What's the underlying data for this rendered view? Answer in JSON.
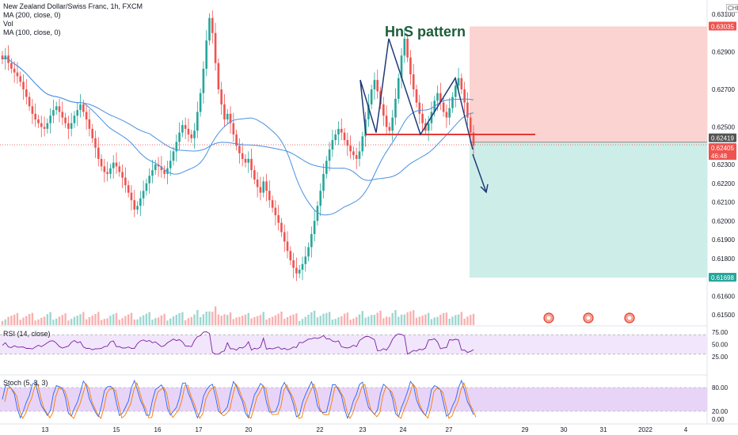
{
  "legend": {
    "symbol": "New Zealand Dollar/Swiss Franc, 1h, FXCM",
    "ma200": "MA (200, close, 0)",
    "vol": "Vol",
    "ma100": "MA (100, close, 0)"
  },
  "annotation": {
    "title": "HnS pattern"
  },
  "currency_label": "CHF",
  "rsi_label": "RSI (14, close)",
  "stoch_label": "Stoch (5, 3, 3)",
  "colors": {
    "up": "#26a69a",
    "down": "#ef5350",
    "ma": "#4a90e2",
    "pattern": "#1e3a78",
    "neckline": "#e53935",
    "stop_zone": "#fbd3d1",
    "target_zone": "#cdeee8",
    "rsi": "#7b1fa2",
    "rsi_band": "#f1e6fb",
    "stoch_k": "#2962ff",
    "stoch_d": "#f57c00",
    "stoch_band": "#e8d4f7"
  },
  "chart_data": {
    "type": "candlestick",
    "price_axis": {
      "ticks": [
        "0.63100",
        "0.62900",
        "0.62700",
        "0.62500",
        "0.62300",
        "0.62200",
        "0.62100",
        "0.62000",
        "0.61900",
        "0.61800",
        "0.61600",
        "0.61500"
      ],
      "ylim": [
        0.615,
        0.6315
      ]
    },
    "x_ticks": [
      "13",
      "15",
      "16",
      "17",
      "20",
      "22",
      "23",
      "24",
      "27",
      "29",
      "30",
      "31",
      "2022",
      "4"
    ],
    "price_tags": [
      {
        "value": "0.63035",
        "color": "#ef5350"
      },
      {
        "value": "0.62419",
        "color": "#555555"
      },
      {
        "value": "0.62405",
        "color": "#ef5350"
      },
      {
        "value": "46:48",
        "color": "#ef5350"
      },
      {
        "value": "0.61698",
        "color": "#26a69a"
      }
    ],
    "key_levels": {
      "stop_loss": 0.63035,
      "entry": 0.62419,
      "current": 0.62405,
      "take_profit": 0.61698,
      "neckline": 0.6246
    },
    "pattern_path": [
      [
        0.6246,
        0.6275
      ],
      [
        0.6275,
        0.6247
      ],
      [
        0.6247,
        0.6297
      ],
      [
        0.6297,
        0.6246
      ],
      [
        0.6246,
        0.6276
      ],
      [
        0.6276,
        0.6238
      ]
    ],
    "rsi_axis": [
      "75.00",
      "50.00",
      "25.00"
    ],
    "rsi_band": [
      30,
      70
    ],
    "stoch_axis": [
      "80.00",
      "20.00",
      "0.00"
    ],
    "stoch_band": [
      20,
      80
    ],
    "closes": [
      0.6286,
      0.6288,
      0.6284,
      0.6281,
      0.6279,
      0.6277,
      0.6274,
      0.627,
      0.6266,
      0.6261,
      0.6257,
      0.6254,
      0.6252,
      0.625,
      0.6249,
      0.6252,
      0.6256,
      0.6259,
      0.6261,
      0.6258,
      0.6255,
      0.6252,
      0.6249,
      0.6252,
      0.6256,
      0.6259,
      0.6262,
      0.6258,
      0.6254,
      0.6249,
      0.6244,
      0.6239,
      0.6233,
      0.6229,
      0.6226,
      0.6225,
      0.6228,
      0.6231,
      0.6229,
      0.6226,
      0.6223,
      0.6219,
      0.6215,
      0.6211,
      0.6206,
      0.6208,
      0.6212,
      0.6216,
      0.622,
      0.6224,
      0.6227,
      0.623,
      0.6229,
      0.6227,
      0.6225,
      0.6228,
      0.6232,
      0.6237,
      0.6242,
      0.6247,
      0.6251,
      0.6249,
      0.6246,
      0.6244,
      0.6248,
      0.6258,
      0.6268,
      0.6281,
      0.6296,
      0.6308,
      0.63,
      0.6284,
      0.627,
      0.6262,
      0.6254,
      0.6257,
      0.6252,
      0.6246,
      0.624,
      0.6236,
      0.6233,
      0.6231,
      0.6233,
      0.6227,
      0.6222,
      0.6218,
      0.6215,
      0.6221,
      0.6216,
      0.6211,
      0.6207,
      0.6203,
      0.6199,
      0.6194,
      0.6189,
      0.6184,
      0.6179,
      0.6175,
      0.6172,
      0.6174,
      0.6177,
      0.6181,
      0.6186,
      0.6193,
      0.62,
      0.6208,
      0.6216,
      0.6225,
      0.6232,
      0.6238,
      0.6243,
      0.6246,
      0.6249,
      0.6247,
      0.6243,
      0.624,
      0.6237,
      0.6235,
      0.6233,
      0.6237,
      0.6245,
      0.6254,
      0.6262,
      0.627,
      0.6275,
      0.6269,
      0.6262,
      0.6256,
      0.625,
      0.6248,
      0.6255,
      0.6265,
      0.6276,
      0.6288,
      0.6297,
      0.6287,
      0.6278,
      0.627,
      0.6263,
      0.6257,
      0.6252,
      0.6248,
      0.6252,
      0.6258,
      0.6264,
      0.6268,
      0.6263,
      0.6258,
      0.6255,
      0.626,
      0.6266,
      0.6272,
      0.6276,
      0.627,
      0.6263,
      0.6255,
      0.6247,
      0.624
    ]
  }
}
